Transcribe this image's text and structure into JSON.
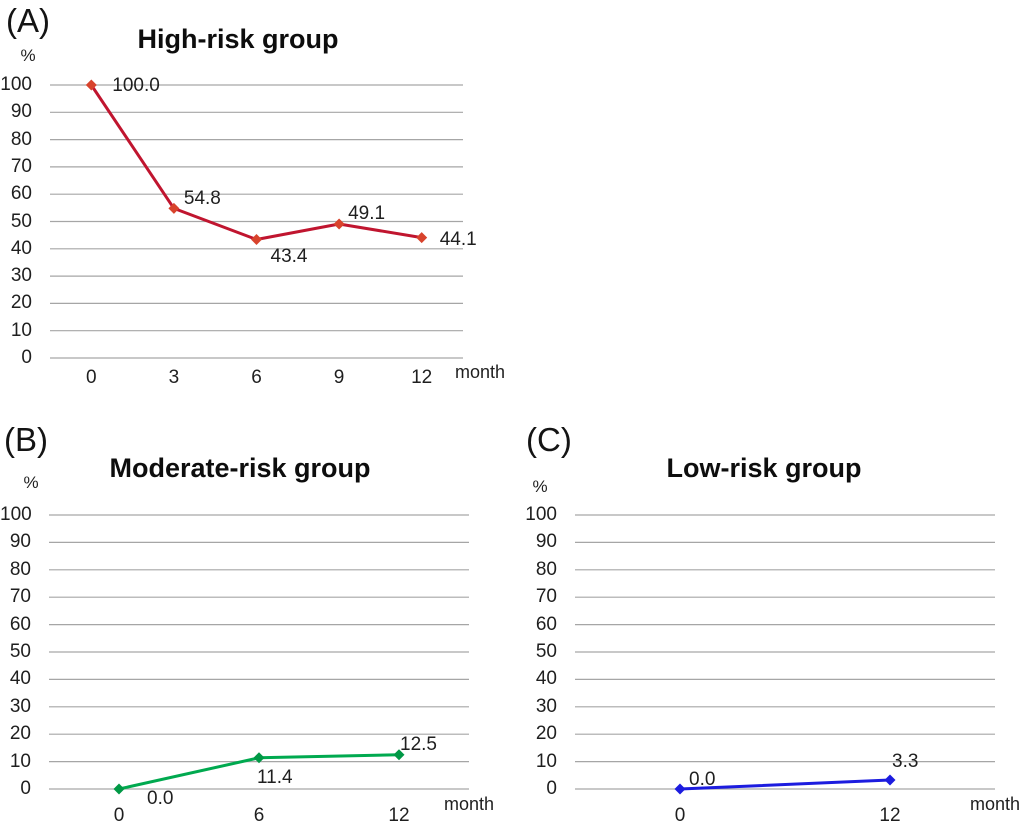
{
  "figure": {
    "background": "#ffffff",
    "text_color": "#1f1f1f",
    "grid_color": "#a6a6a6"
  },
  "chart_data": [
    {
      "type": "line",
      "panel_label": "(A)",
      "title": "High-risk group",
      "ylabel": "%",
      "xlabel": "month",
      "ylim": [
        0,
        100
      ],
      "grid": true,
      "legend": "none",
      "y_ticks": [
        "100",
        "90",
        "80",
        "70",
        "60",
        "50",
        "40",
        "30",
        "20",
        "10",
        "0"
      ],
      "categories": [
        "0",
        "3",
        "6",
        "9",
        "12"
      ],
      "values": [
        100.0,
        54.8,
        43.4,
        49.1,
        44.1
      ],
      "point_labels": [
        "100.0",
        "54.8",
        "43.4",
        "49.1",
        "44.1"
      ],
      "line_color": "#c0152f",
      "marker_color": "#d8432c"
    },
    {
      "type": "line",
      "panel_label": "(B)",
      "title": "Moderate-risk group",
      "ylabel": "%",
      "xlabel": "month",
      "ylim": [
        0,
        100
      ],
      "grid": true,
      "legend": "none",
      "y_ticks": [
        "100",
        "90",
        "80",
        "70",
        "60",
        "50",
        "40",
        "30",
        "20",
        "10",
        "0"
      ],
      "categories": [
        "0",
        "6",
        "12"
      ],
      "values": [
        0.0,
        11.4,
        12.5
      ],
      "point_labels": [
        "0.0",
        "11.4",
        "12.5"
      ],
      "line_color": "#00a94f",
      "marker_color": "#009845"
    },
    {
      "type": "line",
      "panel_label": "(C)",
      "title": "Low-risk group",
      "ylabel": "%",
      "xlabel": "month",
      "ylim": [
        0,
        100
      ],
      "grid": true,
      "legend": "none",
      "y_ticks": [
        "100",
        "90",
        "80",
        "70",
        "60",
        "50",
        "40",
        "30",
        "20",
        "10",
        "0"
      ],
      "categories": [
        "0",
        "12"
      ],
      "values": [
        0.0,
        3.3
      ],
      "point_labels": [
        "0.0",
        "3.3"
      ],
      "line_color": "#1c1cdf",
      "marker_color": "#1c1cdf"
    }
  ]
}
